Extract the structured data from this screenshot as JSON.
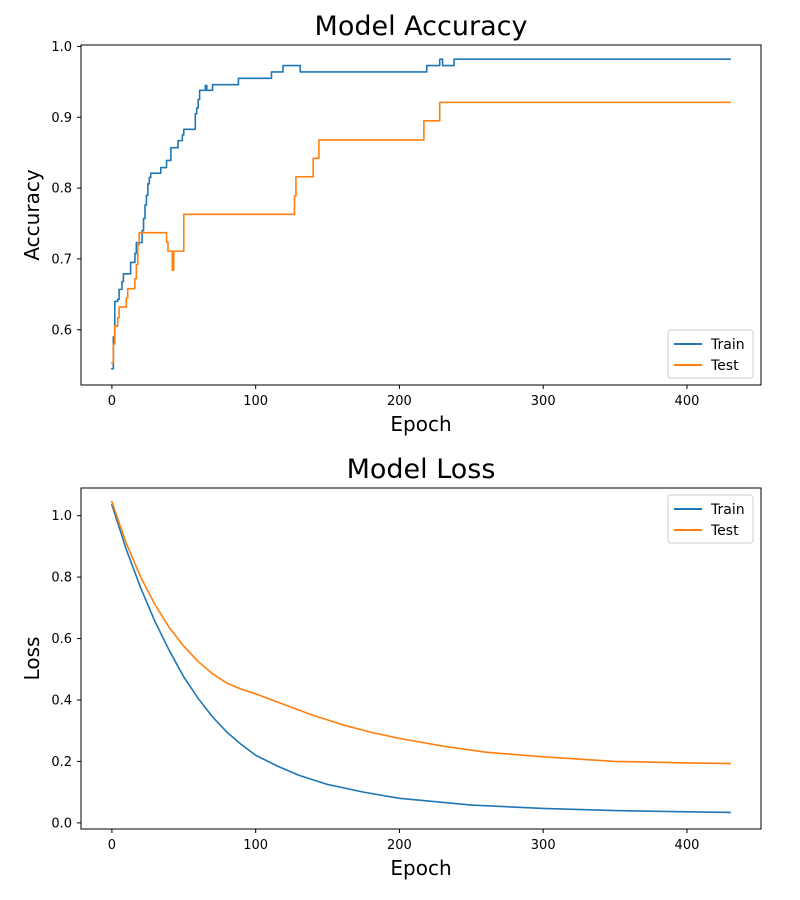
{
  "chart_data": [
    {
      "type": "line",
      "title": "Model Accuracy",
      "xlabel": "Epoch",
      "ylabel": "Accuracy",
      "xlim": [
        -21.5,
        451.5
      ],
      "ylim": [
        0.522,
        1.002
      ],
      "xticks": [
        0,
        100,
        200,
        300,
        400
      ],
      "yticks": [
        0.6,
        0.7,
        0.8,
        0.9,
        1.0
      ],
      "ytick_labels": [
        "0.6",
        "0.7",
        "0.8",
        "0.9",
        "1.0"
      ],
      "grid": false,
      "legend_position": "lower-right",
      "series": [
        {
          "name": "Train",
          "color": "#1f77b4",
          "step": true,
          "points": [
            [
              0,
              0.545
            ],
            [
              1,
              0.59
            ],
            [
              2,
              0.64
            ],
            [
              4,
              0.643
            ],
            [
              5,
              0.657
            ],
            [
              7,
              0.668
            ],
            [
              8,
              0.679
            ],
            [
              12,
              0.679
            ],
            [
              13,
              0.695
            ],
            [
              15,
              0.695
            ],
            [
              16,
              0.708
            ],
            [
              17,
              0.723
            ],
            [
              20,
              0.723
            ],
            [
              21,
              0.74
            ],
            [
              22,
              0.757
            ],
            [
              23,
              0.776
            ],
            [
              24,
              0.79
            ],
            [
              25,
              0.806
            ],
            [
              26,
              0.815
            ],
            [
              27,
              0.821
            ],
            [
              33,
              0.821
            ],
            [
              34,
              0.829
            ],
            [
              37,
              0.829
            ],
            [
              38,
              0.839
            ],
            [
              40,
              0.839
            ],
            [
              41,
              0.857
            ],
            [
              45,
              0.857
            ],
            [
              46,
              0.867
            ],
            [
              48,
              0.867
            ],
            [
              49,
              0.875
            ],
            [
              50,
              0.883
            ],
            [
              57,
              0.883
            ],
            [
              58,
              0.905
            ],
            [
              59,
              0.913
            ],
            [
              60,
              0.925
            ],
            [
              61,
              0.938
            ],
            [
              64,
              0.938
            ],
            [
              65,
              0.945
            ],
            [
              66,
              0.938
            ],
            [
              69,
              0.938
            ],
            [
              70,
              0.946
            ],
            [
              87,
              0.946
            ],
            [
              88,
              0.955
            ],
            [
              110,
              0.955
            ],
            [
              111,
              0.964
            ],
            [
              118,
              0.964
            ],
            [
              119,
              0.973
            ],
            [
              130,
              0.973
            ],
            [
              131,
              0.964
            ],
            [
              218,
              0.964
            ],
            [
              219,
              0.973
            ],
            [
              227,
              0.973
            ],
            [
              228,
              0.982
            ],
            [
              230,
              0.973
            ],
            [
              237,
              0.973
            ],
            [
              238,
              0.982
            ],
            [
              430,
              0.982
            ]
          ]
        },
        {
          "name": "Test",
          "color": "#ff7f0e",
          "step": true,
          "points": [
            [
              0,
              0.553
            ],
            [
              1,
              0.58
            ],
            [
              2,
              0.605
            ],
            [
              4,
              0.617
            ],
            [
              5,
              0.632
            ],
            [
              9,
              0.632
            ],
            [
              10,
              0.645
            ],
            [
              11,
              0.658
            ],
            [
              15,
              0.658
            ],
            [
              16,
              0.672
            ],
            [
              17,
              0.692
            ],
            [
              18,
              0.72
            ],
            [
              19,
              0.737
            ],
            [
              37,
              0.737
            ],
            [
              38,
              0.724
            ],
            [
              39,
              0.711
            ],
            [
              41,
              0.711
            ],
            [
              42,
              0.684
            ],
            [
              43,
              0.711
            ],
            [
              49,
              0.711
            ],
            [
              50,
              0.763
            ],
            [
              126,
              0.763
            ],
            [
              127,
              0.789
            ],
            [
              128,
              0.816
            ],
            [
              139,
              0.816
            ],
            [
              140,
              0.842
            ],
            [
              143,
              0.842
            ],
            [
              144,
              0.868
            ],
            [
              216,
              0.868
            ],
            [
              217,
              0.895
            ],
            [
              227,
              0.895
            ],
            [
              228,
              0.921
            ],
            [
              430,
              0.921
            ]
          ]
        }
      ]
    },
    {
      "type": "line",
      "title": "Model Loss",
      "xlabel": "Epoch",
      "ylabel": "Loss",
      "xlim": [
        -21.5,
        451.5
      ],
      "ylim": [
        -0.02,
        1.09
      ],
      "xticks": [
        0,
        100,
        200,
        300,
        400
      ],
      "yticks": [
        0.0,
        0.2,
        0.4,
        0.6,
        0.8,
        1.0
      ],
      "ytick_labels": [
        "0.0",
        "0.2",
        "0.4",
        "0.6",
        "0.8",
        "1.0"
      ],
      "grid": false,
      "legend_position": "upper-right",
      "series": [
        {
          "name": "Train",
          "color": "#1f77b4",
          "step": false,
          "points": [
            [
              0,
              1.035
            ],
            [
              10,
              0.89
            ],
            [
              20,
              0.765
            ],
            [
              30,
              0.655
            ],
            [
              40,
              0.56
            ],
            [
              50,
              0.475
            ],
            [
              60,
              0.405
            ],
            [
              70,
              0.345
            ],
            [
              80,
              0.295
            ],
            [
              90,
              0.255
            ],
            [
              100,
              0.22
            ],
            [
              115,
              0.185
            ],
            [
              130,
              0.155
            ],
            [
              150,
              0.125
            ],
            [
              175,
              0.1
            ],
            [
              200,
              0.08
            ],
            [
              250,
              0.058
            ],
            [
              300,
              0.047
            ],
            [
              350,
              0.04
            ],
            [
              400,
              0.036
            ],
            [
              430,
              0.034
            ]
          ]
        },
        {
          "name": "Test",
          "color": "#ff7f0e",
          "step": false,
          "points": [
            [
              0,
              1.045
            ],
            [
              10,
              0.91
            ],
            [
              20,
              0.8
            ],
            [
              30,
              0.71
            ],
            [
              40,
              0.635
            ],
            [
              50,
              0.575
            ],
            [
              60,
              0.525
            ],
            [
              70,
              0.485
            ],
            [
              80,
              0.455
            ],
            [
              90,
              0.435
            ],
            [
              100,
              0.42
            ],
            [
              120,
              0.385
            ],
            [
              140,
              0.35
            ],
            [
              160,
              0.32
            ],
            [
              180,
              0.295
            ],
            [
              200,
              0.275
            ],
            [
              230,
              0.25
            ],
            [
              260,
              0.23
            ],
            [
              300,
              0.215
            ],
            [
              350,
              0.2
            ],
            [
              400,
              0.195
            ],
            [
              430,
              0.193
            ]
          ]
        }
      ]
    }
  ]
}
